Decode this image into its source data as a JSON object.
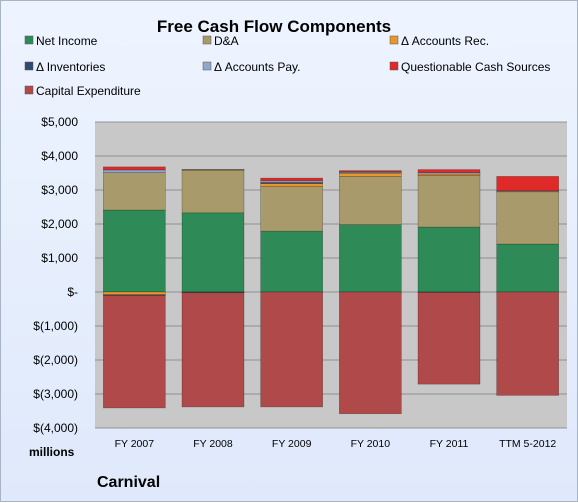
{
  "chart_data": {
    "type": "bar",
    "stacked": true,
    "title": "Free Cash Flow Components",
    "unit_label": "millions",
    "company": "Carnival",
    "categories": [
      "FY 2007",
      "FY 2008",
      "FY 2009",
      "FY 2010",
      "FY 2011",
      "TTM 5-2012"
    ],
    "ylim": [
      -4000,
      5000
    ],
    "yticks": [
      {
        "value": 5000,
        "label": "$5,000"
      },
      {
        "value": 4000,
        "label": "$4,000"
      },
      {
        "value": 3000,
        "label": "$3,000"
      },
      {
        "value": 2000,
        "label": "$2,000"
      },
      {
        "value": 1000,
        "label": "$1,000"
      },
      {
        "value": 0,
        "label": "$-"
      },
      {
        "value": -1000,
        "label": "$(1,000)"
      },
      {
        "value": -2000,
        "label": "$(2,000)"
      },
      {
        "value": -3000,
        "label": "$(3,000)"
      },
      {
        "value": -4000,
        "label": "$(4,000)"
      }
    ],
    "grid": true,
    "legend_position": "top",
    "series": [
      {
        "name": "Net Income",
        "color": "#2e8b57",
        "values": [
          2410,
          2330,
          1790,
          1980,
          1910,
          1410
        ]
      },
      {
        "name": "D&A",
        "color": "#a89a6a",
        "values": [
          1100,
          1250,
          1310,
          1420,
          1520,
          1540
        ]
      },
      {
        "name": "Δ Accounts Rec.",
        "color": "#e8962e",
        "values": [
          -80,
          20,
          90,
          100,
          40,
          10
        ]
      },
      {
        "name": "Δ Inventories",
        "color": "#2f4a6e",
        "values": [
          -20,
          -20,
          30,
          10,
          -10,
          0
        ]
      },
      {
        "name": "Δ Accounts Pay.",
        "color": "#8fa8cc",
        "values": [
          80,
          10,
          50,
          30,
          40,
          20
        ]
      },
      {
        "name": "Questionable Cash Sources",
        "color": "#e02a2a",
        "values": [
          90,
          0,
          80,
          30,
          90,
          420
        ]
      },
      {
        "name": "Capital Expenditure",
        "color": "#b04a4a",
        "values": [
          -3310,
          -3360,
          -3380,
          -3580,
          -2700,
          -3040
        ]
      }
    ]
  }
}
